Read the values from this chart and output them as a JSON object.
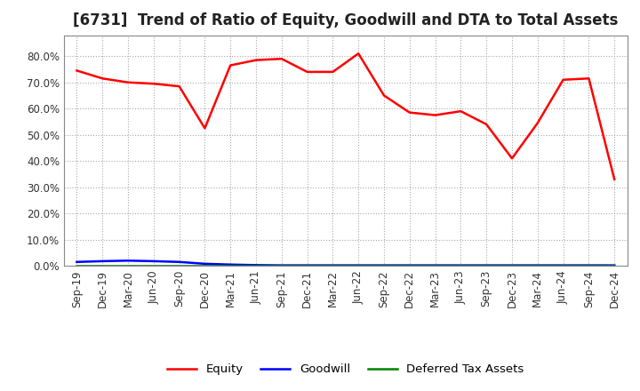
{
  "title": "[6731]  Trend of Ratio of Equity, Goodwill and DTA to Total Assets",
  "x_labels": [
    "Sep-19",
    "Dec-19",
    "Mar-20",
    "Jun-20",
    "Sep-20",
    "Dec-20",
    "Mar-21",
    "Jun-21",
    "Sep-21",
    "Dec-21",
    "Mar-22",
    "Jun-22",
    "Sep-22",
    "Dec-22",
    "Mar-23",
    "Jun-23",
    "Sep-23",
    "Dec-23",
    "Mar-24",
    "Jun-24",
    "Sep-24",
    "Dec-24"
  ],
  "equity": [
    74.5,
    71.5,
    70.0,
    69.5,
    68.5,
    52.5,
    76.5,
    78.5,
    79.0,
    74.0,
    74.0,
    81.0,
    65.0,
    58.5,
    57.5,
    59.0,
    54.0,
    41.0,
    54.5,
    71.0,
    71.5,
    33.0
  ],
  "goodwill": [
    1.5,
    1.8,
    2.0,
    1.8,
    1.5,
    0.8,
    0.5,
    0.3,
    0.2,
    0.2,
    0.2,
    0.2,
    0.2,
    0.2,
    0.2,
    0.2,
    0.2,
    0.2,
    0.2,
    0.2,
    0.2,
    0.2
  ],
  "dta": [
    0.05,
    0.05,
    0.05,
    0.05,
    0.05,
    0.05,
    0.05,
    0.05,
    0.05,
    0.05,
    0.05,
    0.05,
    0.05,
    0.05,
    0.05,
    0.05,
    0.05,
    0.05,
    0.05,
    0.05,
    0.05,
    0.05
  ],
  "equity_color": "#FF0000",
  "goodwill_color": "#0000FF",
  "dta_color": "#008000",
  "bg_color": "#FFFFFF",
  "plot_bg_color": "#FFFFFF",
  "grid_color": "#AAAAAA",
  "ylim": [
    0,
    88
  ],
  "yticks": [
    0,
    10,
    20,
    30,
    40,
    50,
    60,
    70,
    80
  ],
  "legend_labels": [
    "Equity",
    "Goodwill",
    "Deferred Tax Assets"
  ],
  "title_fontsize": 12,
  "tick_fontsize": 8.5
}
